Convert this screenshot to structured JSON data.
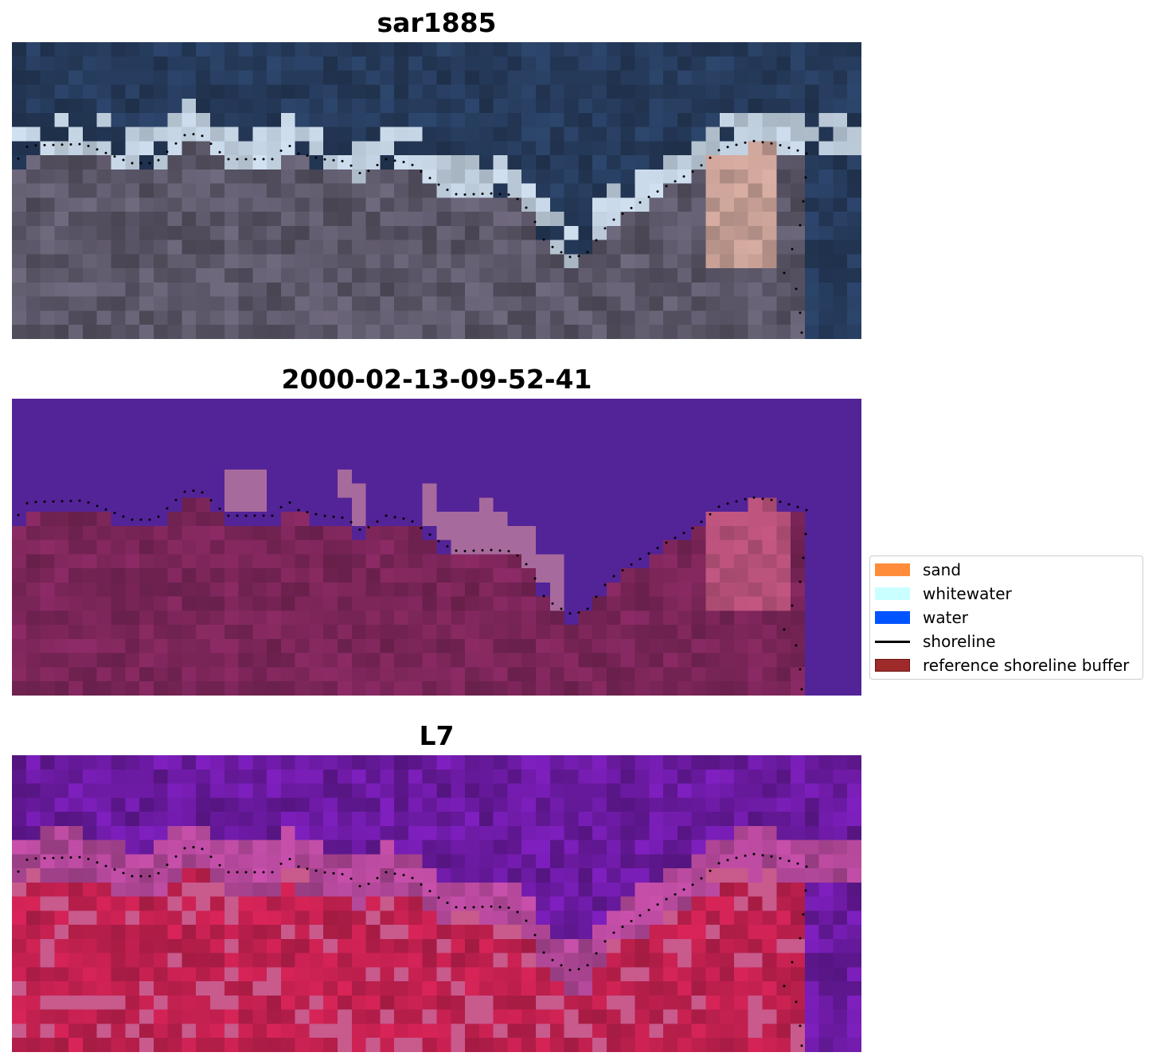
{
  "panels": [
    {
      "title": "sar1885"
    },
    {
      "title": "2000-02-13-09-52-41"
    },
    {
      "title": "L7"
    }
  ],
  "legend": {
    "items": [
      {
        "label": "sand",
        "color": "#ff8c3a"
      },
      {
        "label": "whitewater",
        "color": "#c9ffff"
      },
      {
        "label": "water",
        "color": "#0054ff"
      },
      {
        "label": "shoreline",
        "color": "#000000"
      },
      {
        "label": "reference shoreline buffer",
        "color": "#9e2a2a"
      }
    ]
  },
  "colors": {
    "rgb_water": "#243857",
    "rgb_land": "#5a5566",
    "class_water": "#532398",
    "class_land": "#7a2558",
    "class_whitewater": "#a76a9c",
    "ndwi_water": "#6a1aa0",
    "ndwi_land": "#c0204e"
  }
}
